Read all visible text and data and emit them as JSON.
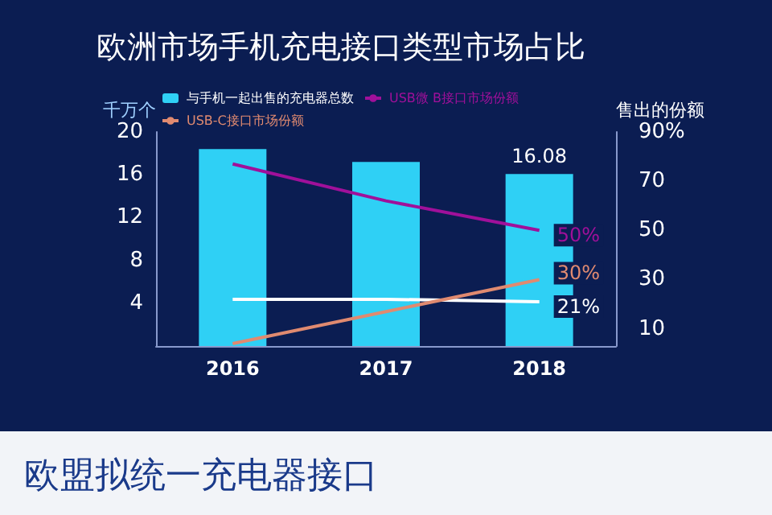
{
  "chart_data": {
    "type": "bar",
    "title": "欧洲市场手机充电接口类型市场占比",
    "subtitle": "欧盟拟统一充电器接口",
    "categories": [
      "2016",
      "2017",
      "2018"
    ],
    "ylabel": "千万个",
    "y2label": "售出的份额",
    "ylim": [
      0,
      20
    ],
    "yticks": [
      4,
      8,
      12,
      16,
      20
    ],
    "y2lim": [
      3,
      90
    ],
    "y2ticks": [
      10,
      30,
      50,
      70,
      {
        "value": 90,
        "label": "90%"
      }
    ],
    "series": [
      {
        "name": "与手机一起出售的充电器总数",
        "color": "#2fd0f5",
        "values": [
          18.4,
          17.2,
          16.08
        ],
        "value_labels": [
          null,
          null,
          "16.08"
        ]
      },
      {
        "name": "USB微 B接口市场份额",
        "type": "line",
        "axis": "y2",
        "color": "#a0109a",
        "values": [
          77,
          62,
          50
        ],
        "value_labels": [
          null,
          null,
          "50%"
        ]
      },
      {
        "type": "line",
        "axis": "y2",
        "color": "#ffffff",
        "values": [
          22,
          22,
          21
        ],
        "value_labels": [
          null,
          null,
          "21%"
        ]
      },
      {
        "name": "USB-C接口市场份额",
        "type": "line",
        "axis": "y2",
        "color": "#e08a70",
        "values": [
          4,
          17,
          30
        ],
        "value_labels": [
          null,
          null,
          "30%"
        ]
      }
    ],
    "marker": "none",
    "grid": false,
    "legend": "top left"
  }
}
